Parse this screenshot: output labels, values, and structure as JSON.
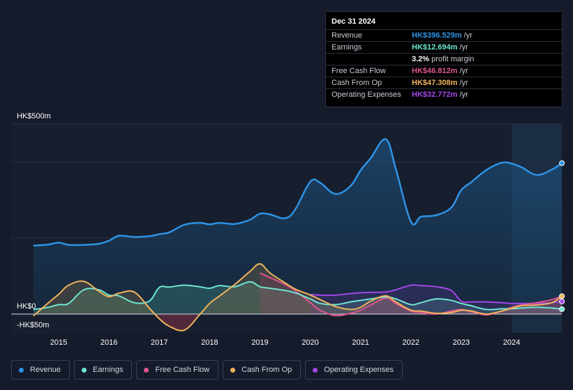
{
  "chart_data": {
    "type": "area",
    "title": "",
    "xlabel": "",
    "ylabel": "",
    "ylim": [
      -50,
      500
    ],
    "y_tick_labels": [
      "HK$500m",
      "HK$0",
      "-HK$50m"
    ],
    "x_tick_labels": [
      "2015",
      "2016",
      "2017",
      "2018",
      "2019",
      "2020",
      "2021",
      "2022",
      "2023",
      "2024"
    ],
    "series": [
      {
        "name": "Revenue",
        "color": "#2e93e6",
        "x": [
          2014.5,
          2014.8,
          2015.0,
          2015.2,
          2015.5,
          2015.8,
          2016.0,
          2016.2,
          2016.5,
          2016.8,
          2017.0,
          2017.2,
          2017.5,
          2017.8,
          2018.0,
          2018.2,
          2018.5,
          2018.8,
          2019.0,
          2019.2,
          2019.5,
          2019.7,
          2020.0,
          2020.2,
          2020.5,
          2020.8,
          2021.0,
          2021.2,
          2021.5,
          2021.7,
          2022.0,
          2022.2,
          2022.5,
          2022.8,
          2023.0,
          2023.2,
          2023.5,
          2023.8,
          2024.0,
          2024.2,
          2024.5,
          2024.8,
          2025.0
        ],
        "values": [
          180,
          183,
          188,
          182,
          182,
          185,
          193,
          206,
          203,
          205,
          210,
          215,
          235,
          240,
          236,
          240,
          237,
          248,
          264,
          262,
          252,
          275,
          348,
          345,
          316,
          337,
          378,
          410,
          460,
          382,
          243,
          256,
          260,
          280,
          326,
          347,
          379,
          398,
          396,
          386,
          366,
          380,
          397
        ]
      },
      {
        "name": "Earnings",
        "color": "#6ee7d1",
        "x": [
          2014.5,
          2014.8,
          2015.0,
          2015.2,
          2015.5,
          2015.8,
          2016.0,
          2016.2,
          2016.5,
          2016.8,
          2017.0,
          2017.2,
          2017.5,
          2017.8,
          2018.0,
          2018.2,
          2018.5,
          2018.8,
          2019.0,
          2019.2,
          2019.5,
          2019.7,
          2020.0,
          2020.2,
          2020.5,
          2020.8,
          2021.0,
          2021.2,
          2021.5,
          2021.7,
          2022.0,
          2022.2,
          2022.5,
          2022.8,
          2023.0,
          2023.2,
          2023.5,
          2023.8,
          2024.0,
          2024.2,
          2024.5,
          2024.8,
          2025.0
        ],
        "values": [
          12,
          18,
          25,
          28,
          64,
          64,
          50,
          48,
          30,
          34,
          70,
          71,
          76,
          72,
          68,
          75,
          72,
          85,
          72,
          68,
          62,
          56,
          40,
          28,
          25,
          32,
          36,
          40,
          45,
          40,
          25,
          30,
          40,
          36,
          28,
          22,
          12,
          14,
          14,
          16,
          18,
          16,
          13
        ]
      },
      {
        "name": "Free Cash Flow",
        "color": "#e0558d",
        "x": [
          2019.0,
          2019.2,
          2019.5,
          2019.7,
          2020.0,
          2020.2,
          2020.5,
          2020.8,
          2021.0,
          2021.2,
          2021.5,
          2021.7,
          2022.0,
          2022.2,
          2022.5,
          2022.8,
          2023.0,
          2023.2,
          2023.5,
          2023.8,
          2024.0,
          2024.2,
          2024.5,
          2024.8,
          2025.0
        ],
        "values": [
          108,
          96,
          78,
          62,
          30,
          10,
          -4,
          2,
          10,
          24,
          42,
          28,
          8,
          4,
          0,
          8,
          12,
          6,
          -2,
          8,
          18,
          24,
          30,
          38,
          47
        ]
      },
      {
        "name": "Cash From Op",
        "color": "#f0b45c",
        "x": [
          2014.5,
          2014.8,
          2015.0,
          2015.2,
          2015.5,
          2015.8,
          2016.0,
          2016.2,
          2016.5,
          2016.8,
          2017.0,
          2017.2,
          2017.5,
          2017.8,
          2018.0,
          2018.2,
          2018.5,
          2018.8,
          2019.0,
          2019.2,
          2019.5,
          2019.7,
          2020.0,
          2020.2,
          2020.5,
          2020.8,
          2021.0,
          2021.2,
          2021.5,
          2021.7,
          2022.0,
          2022.2,
          2022.5,
          2022.8,
          2023.0,
          2023.2,
          2023.5,
          2023.8,
          2024.0,
          2024.2,
          2024.5,
          2024.8,
          2025.0
        ],
        "values": [
          -5,
          30,
          52,
          76,
          86,
          60,
          46,
          55,
          58,
          16,
          -12,
          -32,
          -42,
          -2,
          28,
          48,
          78,
          112,
          132,
          108,
          82,
          66,
          50,
          38,
          20,
          12,
          18,
          34,
          48,
          32,
          10,
          8,
          2,
          4,
          10,
          8,
          0,
          8,
          15,
          22,
          24,
          30,
          47
        ]
      },
      {
        "name": "Operating Expenses",
        "color": "#a347e8",
        "x": [
          2020.0,
          2020.2,
          2020.5,
          2020.8,
          2021.0,
          2021.2,
          2021.5,
          2021.7,
          2022.0,
          2022.2,
          2022.5,
          2022.8,
          2023.0,
          2023.2,
          2023.5,
          2023.8,
          2024.0,
          2024.2,
          2024.5,
          2024.8,
          2025.0
        ],
        "values": [
          52,
          50,
          50,
          54,
          56,
          57,
          58,
          64,
          76,
          75,
          72,
          62,
          34,
          32,
          32,
          30,
          28,
          28,
          28,
          30,
          33
        ]
      }
    ]
  },
  "tooltip": {
    "date": "Dec 31 2024",
    "rows": [
      {
        "label": "Revenue",
        "value": "HK$396.529m",
        "unit": " /yr",
        "color": "#2e93e6"
      },
      {
        "label": "Earnings",
        "value": "HK$12.694m",
        "unit": " /yr",
        "color": "#6ee7d1"
      },
      {
        "label": "",
        "value": "3.2%",
        "unit": " profit margin",
        "color": "#ffffff"
      },
      {
        "label": "Free Cash Flow",
        "value": "HK$46.812m",
        "unit": " /yr",
        "color": "#e0558d"
      },
      {
        "label": "Cash From Op",
        "value": "HK$47.308m",
        "unit": " /yr",
        "color": "#f0b45c"
      },
      {
        "label": "Operating Expenses",
        "value": "HK$32.772m",
        "unit": " /yr",
        "color": "#a347e8"
      }
    ]
  },
  "legend": [
    {
      "label": "Revenue",
      "color": "#2e93e6"
    },
    {
      "label": "Earnings",
      "color": "#6ee7d1"
    },
    {
      "label": "Free Cash Flow",
      "color": "#e0558d"
    },
    {
      "label": "Cash From Op",
      "color": "#f0b45c"
    },
    {
      "label": "Operating Expenses",
      "color": "#a347e8"
    }
  ]
}
